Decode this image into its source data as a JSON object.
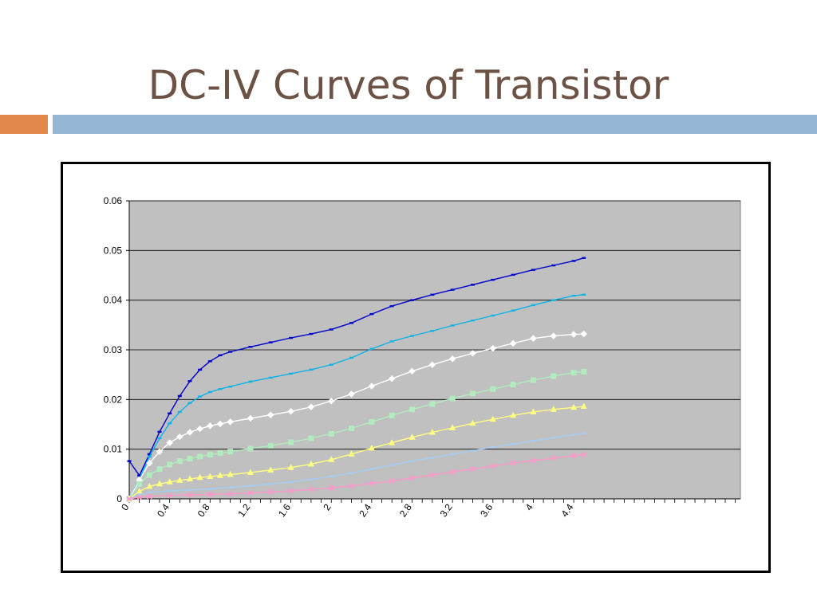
{
  "slide": {
    "title": "DC-IV Curves of Transistor",
    "colors": {
      "title": "#6b5245",
      "accent_orange": "#e0894a",
      "accent_blue": "#94b6d2"
    }
  },
  "chart_data": {
    "type": "line",
    "title": "",
    "xlabel": "",
    "ylabel": "",
    "xlim": [
      0,
      6.05
    ],
    "ylim": [
      0,
      0.06
    ],
    "y_ticks": [
      "0",
      "0.01",
      "0.02",
      "0.03",
      "0.04",
      "0.05",
      "0.06"
    ],
    "x_ticks": [
      "0",
      "0.4",
      "0.8",
      "1.2",
      "1.6",
      "2",
      "2.4",
      "2.8",
      "3.2",
      "3.6",
      "4",
      "4.4"
    ],
    "grid": true,
    "legend": "none",
    "plot_background": "#c0c0c0",
    "series": [
      {
        "color": "#0000cc",
        "marker": "dash",
        "points": [
          [
            0,
            0.0076
          ],
          [
            0.1,
            0.0047
          ],
          [
            0.2,
            0.009
          ],
          [
            0.3,
            0.0135
          ],
          [
            0.4,
            0.0172
          ],
          [
            0.5,
            0.0207
          ],
          [
            0.6,
            0.0237
          ],
          [
            0.7,
            0.026
          ],
          [
            0.8,
            0.0277
          ],
          [
            0.9,
            0.0289
          ],
          [
            1.0,
            0.0296
          ],
          [
            1.2,
            0.0306
          ],
          [
            1.4,
            0.0315
          ],
          [
            1.6,
            0.0324
          ],
          [
            1.8,
            0.0332
          ],
          [
            2.0,
            0.0341
          ],
          [
            2.2,
            0.0354
          ],
          [
            2.4,
            0.0372
          ],
          [
            2.6,
            0.0388
          ],
          [
            2.8,
            0.04
          ],
          [
            3.0,
            0.0411
          ],
          [
            3.2,
            0.0421
          ],
          [
            3.4,
            0.0431
          ],
          [
            3.6,
            0.0441
          ],
          [
            3.8,
            0.0451
          ],
          [
            4.0,
            0.0461
          ],
          [
            4.2,
            0.047
          ],
          [
            4.4,
            0.0479
          ],
          [
            4.5,
            0.0485
          ]
        ]
      },
      {
        "color": "#0fb3e6",
        "marker": "dash",
        "points": [
          [
            0,
            0
          ],
          [
            0.1,
            0.004
          ],
          [
            0.2,
            0.0085
          ],
          [
            0.3,
            0.0122
          ],
          [
            0.4,
            0.0152
          ],
          [
            0.5,
            0.0175
          ],
          [
            0.6,
            0.0193
          ],
          [
            0.7,
            0.0206
          ],
          [
            0.8,
            0.0215
          ],
          [
            0.9,
            0.0221
          ],
          [
            1.0,
            0.0226
          ],
          [
            1.2,
            0.0236
          ],
          [
            1.4,
            0.0244
          ],
          [
            1.6,
            0.0252
          ],
          [
            1.8,
            0.026
          ],
          [
            2.0,
            0.027
          ],
          [
            2.2,
            0.0284
          ],
          [
            2.4,
            0.0302
          ],
          [
            2.6,
            0.0317
          ],
          [
            2.8,
            0.0328
          ],
          [
            3.0,
            0.0338
          ],
          [
            3.2,
            0.0349
          ],
          [
            3.4,
            0.0359
          ],
          [
            3.6,
            0.0369
          ],
          [
            3.8,
            0.0379
          ],
          [
            4.0,
            0.039
          ],
          [
            4.2,
            0.04
          ],
          [
            4.4,
            0.0409
          ],
          [
            4.5,
            0.0411
          ]
        ]
      },
      {
        "color": "#ffffff",
        "marker": "diamond",
        "points": [
          [
            0,
            0
          ],
          [
            0.1,
            0.0038
          ],
          [
            0.2,
            0.0072
          ],
          [
            0.3,
            0.0095
          ],
          [
            0.4,
            0.0113
          ],
          [
            0.5,
            0.0125
          ],
          [
            0.6,
            0.0134
          ],
          [
            0.7,
            0.0141
          ],
          [
            0.8,
            0.0147
          ],
          [
            0.9,
            0.0151
          ],
          [
            1.0,
            0.0155
          ],
          [
            1.2,
            0.0162
          ],
          [
            1.4,
            0.0169
          ],
          [
            1.6,
            0.0176
          ],
          [
            1.8,
            0.0185
          ],
          [
            2.0,
            0.0197
          ],
          [
            2.2,
            0.0211
          ],
          [
            2.4,
            0.0227
          ],
          [
            2.6,
            0.0242
          ],
          [
            2.8,
            0.0257
          ],
          [
            3.0,
            0.027
          ],
          [
            3.2,
            0.0282
          ],
          [
            3.4,
            0.0293
          ],
          [
            3.6,
            0.0303
          ],
          [
            3.8,
            0.0313
          ],
          [
            4.0,
            0.0323
          ],
          [
            4.2,
            0.0328
          ],
          [
            4.4,
            0.0331
          ],
          [
            4.5,
            0.0332
          ]
        ]
      },
      {
        "color": "#b2ebbd",
        "marker": "square",
        "points": [
          [
            0,
            0
          ],
          [
            0.1,
            0.003
          ],
          [
            0.2,
            0.0048
          ],
          [
            0.3,
            0.006
          ],
          [
            0.4,
            0.0069
          ],
          [
            0.5,
            0.0076
          ],
          [
            0.6,
            0.0081
          ],
          [
            0.7,
            0.0085
          ],
          [
            0.8,
            0.0089
          ],
          [
            0.9,
            0.0092
          ],
          [
            1.0,
            0.0095
          ],
          [
            1.2,
            0.0101
          ],
          [
            1.4,
            0.0107
          ],
          [
            1.6,
            0.0114
          ],
          [
            1.8,
            0.0122
          ],
          [
            2.0,
            0.0131
          ],
          [
            2.2,
            0.0142
          ],
          [
            2.4,
            0.0155
          ],
          [
            2.6,
            0.0168
          ],
          [
            2.8,
            0.018
          ],
          [
            3.0,
            0.0191
          ],
          [
            3.2,
            0.0202
          ],
          [
            3.4,
            0.0212
          ],
          [
            3.6,
            0.0221
          ],
          [
            3.8,
            0.023
          ],
          [
            4.0,
            0.0239
          ],
          [
            4.2,
            0.0247
          ],
          [
            4.4,
            0.0254
          ],
          [
            4.5,
            0.0256
          ]
        ]
      },
      {
        "color": "#ffff80",
        "marker": "triangle",
        "points": [
          [
            0,
            0
          ],
          [
            0.1,
            0.0015
          ],
          [
            0.2,
            0.0025
          ],
          [
            0.3,
            0.003
          ],
          [
            0.4,
            0.0034
          ],
          [
            0.5,
            0.0037
          ],
          [
            0.6,
            0.004
          ],
          [
            0.7,
            0.0043
          ],
          [
            0.8,
            0.0045
          ],
          [
            0.9,
            0.0047
          ],
          [
            1.0,
            0.0049
          ],
          [
            1.2,
            0.0053
          ],
          [
            1.4,
            0.0058
          ],
          [
            1.6,
            0.0063
          ],
          [
            1.8,
            0.007
          ],
          [
            2.0,
            0.0079
          ],
          [
            2.2,
            0.009
          ],
          [
            2.4,
            0.0102
          ],
          [
            2.6,
            0.0113
          ],
          [
            2.8,
            0.0124
          ],
          [
            3.0,
            0.0134
          ],
          [
            3.2,
            0.0143
          ],
          [
            3.4,
            0.0152
          ],
          [
            3.6,
            0.016
          ],
          [
            3.8,
            0.0168
          ],
          [
            4.0,
            0.0175
          ],
          [
            4.2,
            0.018
          ],
          [
            4.4,
            0.0184
          ],
          [
            4.5,
            0.0186
          ]
        ]
      },
      {
        "color": "#a6cdf2",
        "marker": "dash",
        "points": [
          [
            0,
            0
          ],
          [
            0.1,
            0.0009
          ],
          [
            0.2,
            0.0013
          ],
          [
            0.4,
            0.0016
          ],
          [
            0.6,
            0.0018
          ],
          [
            0.8,
            0.002
          ],
          [
            1.0,
            0.0023
          ],
          [
            1.2,
            0.0026
          ],
          [
            1.4,
            0.003
          ],
          [
            1.6,
            0.0034
          ],
          [
            1.8,
            0.0039
          ],
          [
            2.0,
            0.0045
          ],
          [
            2.2,
            0.0052
          ],
          [
            2.4,
            0.006
          ],
          [
            2.6,
            0.0068
          ],
          [
            2.8,
            0.0076
          ],
          [
            3.0,
            0.0083
          ],
          [
            3.2,
            0.009
          ],
          [
            3.4,
            0.0097
          ],
          [
            3.6,
            0.0104
          ],
          [
            3.8,
            0.011
          ],
          [
            4.0,
            0.0117
          ],
          [
            4.2,
            0.0123
          ],
          [
            4.4,
            0.0129
          ],
          [
            4.5,
            0.0132
          ]
        ]
      },
      {
        "color": "#ff99cc",
        "marker": "x",
        "points": [
          [
            0,
            0
          ],
          [
            0.1,
            0.0003
          ],
          [
            0.2,
            0.0005
          ],
          [
            0.4,
            0.0007
          ],
          [
            0.6,
            0.0008
          ],
          [
            0.8,
            0.0009
          ],
          [
            1.0,
            0.001
          ],
          [
            1.2,
            0.0012
          ],
          [
            1.4,
            0.0014
          ],
          [
            1.6,
            0.0016
          ],
          [
            1.8,
            0.0019
          ],
          [
            2.0,
            0.0022
          ],
          [
            2.2,
            0.0026
          ],
          [
            2.4,
            0.0031
          ],
          [
            2.6,
            0.0036
          ],
          [
            2.8,
            0.0042
          ],
          [
            3.0,
            0.0048
          ],
          [
            3.2,
            0.0054
          ],
          [
            3.4,
            0.006
          ],
          [
            3.6,
            0.0066
          ],
          [
            3.8,
            0.0072
          ],
          [
            4.0,
            0.0077
          ],
          [
            4.2,
            0.0082
          ],
          [
            4.4,
            0.0087
          ],
          [
            4.5,
            0.0089
          ]
        ]
      }
    ]
  }
}
